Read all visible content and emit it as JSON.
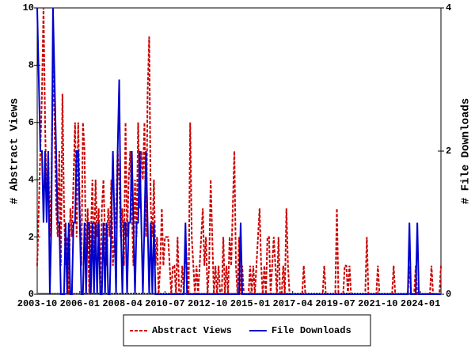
{
  "chart_data": {
    "type": "line",
    "y_label": "# Abstract Views",
    "y2_label": "# File Downloads",
    "categories": [
      "2003-10",
      null,
      null,
      null,
      null,
      null,
      null,
      null,
      null,
      null,
      null,
      null,
      null,
      null,
      null,
      null,
      null,
      null,
      null,
      null,
      null,
      null,
      null,
      null,
      null,
      null,
      null,
      "2006-01",
      null,
      null,
      null,
      null,
      null,
      null,
      null,
      null,
      null,
      null,
      null,
      null,
      null,
      null,
      null,
      null,
      null,
      null,
      null,
      null,
      null,
      null,
      null,
      null,
      null,
      null,
      "2008-04",
      null,
      null,
      null,
      null,
      null,
      null,
      null,
      null,
      null,
      null,
      null,
      null,
      null,
      null,
      null,
      null,
      null,
      null,
      null,
      null,
      null,
      null,
      null,
      null,
      null,
      null,
      "2010-07",
      null,
      null,
      null,
      null,
      null,
      null,
      null,
      null,
      null,
      null,
      null,
      null,
      null,
      null,
      null,
      null,
      null,
      null,
      null,
      null,
      null,
      null,
      null,
      null,
      null,
      null,
      "2012-10",
      null,
      null,
      null,
      null,
      null,
      null,
      null,
      null,
      null,
      null,
      null,
      null,
      null,
      null,
      null,
      null,
      null,
      null,
      null,
      null,
      null,
      null,
      null,
      null,
      null,
      null,
      "2015-01",
      null,
      null,
      null,
      null,
      null,
      null,
      null,
      null,
      null,
      null,
      null,
      null,
      null,
      null,
      null,
      null,
      null,
      null,
      null,
      null,
      null,
      null,
      null,
      null,
      null,
      null,
      "2017-04",
      null,
      null,
      null,
      null,
      null,
      null,
      null,
      null,
      null,
      null,
      null,
      null,
      null,
      null,
      null,
      null,
      null,
      null,
      null,
      null,
      null,
      null,
      null,
      null,
      null,
      null,
      "2019-07",
      null,
      null,
      null,
      null,
      null,
      null,
      null,
      null,
      null,
      null,
      null,
      null,
      null,
      null,
      null,
      null,
      null,
      null,
      null,
      null,
      null,
      null,
      null,
      null,
      null,
      null,
      "2021-10",
      null,
      null,
      null,
      null,
      null,
      null,
      null,
      null,
      null,
      null,
      null,
      null,
      null,
      null,
      null,
      null,
      null,
      null,
      null,
      null,
      null,
      null,
      null,
      null,
      null,
      null,
      "2024-01",
      null,
      null,
      null,
      null,
      null,
      null,
      null,
      null,
      null,
      null,
      null,
      null,
      null
    ],
    "series": [
      {
        "name": "Abstract Views",
        "color": "#cc0000",
        "dash": true,
        "axis": "y",
        "values": [
          1,
          3,
          5,
          7,
          10,
          6,
          3,
          5,
          2,
          4,
          8,
          6,
          3,
          2,
          5,
          1,
          7,
          3,
          1,
          2,
          0,
          3,
          2,
          4,
          6,
          2,
          6,
          3,
          1,
          6,
          5,
          1,
          3,
          0,
          2,
          4,
          1,
          4,
          2,
          3,
          0,
          3,
          4,
          2,
          1,
          3,
          2,
          4,
          1,
          2,
          3,
          5,
          4,
          2,
          3,
          1,
          6,
          2,
          4,
          5,
          3,
          1,
          4,
          2,
          6,
          3,
          5,
          4,
          6,
          2,
          7,
          9,
          3,
          2,
          4,
          1,
          2,
          0,
          1,
          3,
          1,
          2,
          2,
          2,
          1,
          0,
          1,
          1,
          0,
          2,
          0,
          0,
          1,
          0,
          2,
          1,
          0,
          6,
          2,
          1,
          0,
          1,
          0,
          1,
          2,
          3,
          1,
          2,
          0,
          1,
          4,
          2,
          0,
          1,
          0,
          1,
          0,
          0,
          2,
          0,
          1,
          0,
          2,
          1,
          3,
          5,
          1,
          0,
          2,
          0,
          1,
          0,
          0,
          0,
          0,
          1,
          0,
          1,
          0,
          1,
          2,
          3,
          1,
          0,
          1,
          0,
          2,
          2,
          0,
          1,
          2,
          1,
          0,
          2,
          0,
          0,
          1,
          0,
          3,
          1,
          0,
          0,
          0,
          0,
          0,
          0,
          0,
          0,
          0,
          1,
          0,
          0,
          0,
          0,
          0,
          0,
          0,
          0,
          0,
          0,
          0,
          0,
          1,
          0,
          0,
          0,
          0,
          0,
          0,
          0,
          3,
          0,
          0,
          0,
          0,
          1,
          1,
          0,
          1,
          0,
          0,
          0,
          0,
          0,
          0,
          0,
          0,
          0,
          0,
          2,
          0,
          0,
          0,
          0,
          0,
          0,
          1,
          0,
          0,
          0,
          0,
          0,
          0,
          0,
          0,
          0,
          1,
          0,
          0,
          0,
          0,
          0,
          0,
          0,
          0,
          0,
          1,
          0,
          0,
          0,
          1,
          0,
          0,
          0,
          0,
          0,
          0,
          0,
          0,
          0,
          1,
          0,
          0,
          0,
          0,
          0,
          1
        ]
      },
      {
        "name": "File Downloads",
        "color": "#0000cc",
        "dash": false,
        "axis": "y2",
        "values": [
          4,
          3,
          2,
          2,
          1,
          2,
          1,
          2,
          0,
          1,
          4,
          3,
          2,
          1,
          1,
          0,
          0,
          0,
          1,
          0,
          1,
          0,
          0,
          1,
          1,
          2,
          2,
          1,
          0,
          0,
          1,
          0,
          1,
          1,
          0,
          1,
          0,
          1,
          0,
          1,
          0,
          0,
          1,
          0,
          1,
          0,
          0,
          1,
          2,
          1,
          0,
          2,
          3,
          1,
          0,
          1,
          1,
          0,
          1,
          1,
          2,
          1,
          0,
          1,
          1,
          2,
          1,
          0,
          1,
          2,
          1,
          0,
          1,
          0,
          1,
          0,
          0,
          0,
          0,
          0,
          0,
          0,
          0,
          0,
          0,
          0,
          0,
          0,
          0,
          0,
          0,
          0,
          0,
          0,
          1,
          0,
          0,
          0,
          0,
          0,
          0,
          0,
          0,
          0,
          0,
          0,
          0,
          0,
          0,
          0,
          0,
          0,
          0,
          0,
          0,
          0,
          0,
          0,
          0,
          0,
          0,
          0,
          0,
          0,
          0,
          0,
          0,
          0,
          0,
          1,
          0,
          0,
          0,
          0,
          0,
          0,
          0,
          0,
          0,
          0,
          0,
          0,
          0,
          0,
          0,
          0,
          0,
          0,
          0,
          0,
          0,
          0,
          0,
          0,
          0,
          0,
          0,
          0,
          0,
          0,
          0,
          0,
          0,
          0,
          0,
          0,
          0,
          0,
          0,
          0,
          0,
          0,
          0,
          0,
          0,
          0,
          0,
          0,
          0,
          0,
          0,
          0,
          0,
          0,
          0,
          0,
          0,
          0,
          0,
          0,
          0,
          0,
          0,
          0,
          0,
          0,
          0,
          0,
          0,
          0,
          0,
          0,
          0,
          0,
          0,
          0,
          0,
          0,
          0,
          0,
          0,
          0,
          0,
          0,
          0,
          0,
          0,
          0,
          0,
          0,
          0,
          0,
          0,
          0,
          0,
          0,
          0,
          0,
          0,
          0,
          0,
          0,
          0,
          0,
          0,
          0,
          1,
          0,
          0,
          0,
          0,
          1,
          0,
          0,
          0,
          0,
          0,
          0,
          0,
          0,
          0,
          0,
          0,
          0,
          0,
          0,
          0
        ]
      }
    ],
    "ylim": [
      0,
      10
    ],
    "yticks": [
      0,
      2,
      4,
      6,
      8,
      10
    ],
    "y2lim": [
      0,
      4
    ],
    "y2ticks": [
      0,
      2,
      4
    ],
    "legend": "bottom"
  }
}
